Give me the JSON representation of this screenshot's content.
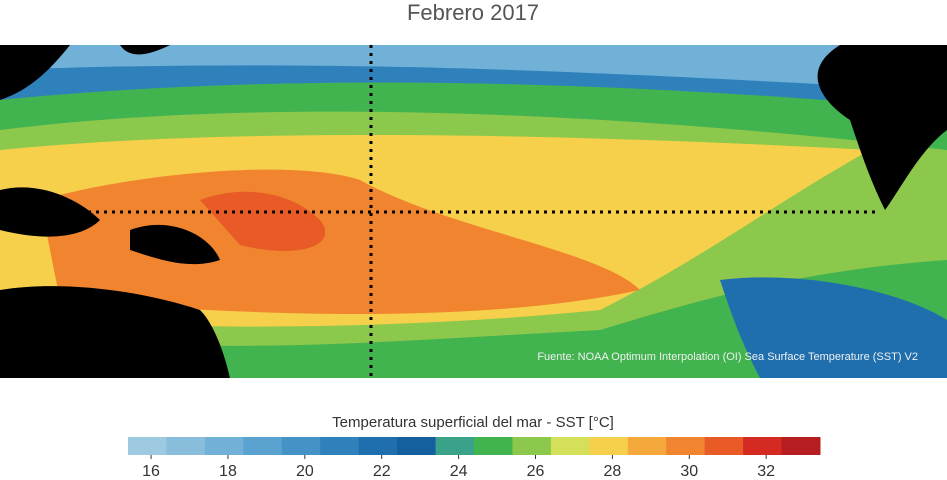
{
  "title": "Febrero 2017",
  "source": "Fuente: NOAA Optimum Interpolation (OI) Sea Surface Temperature (SST) V2",
  "colorbar": {
    "label": "Temperatura superficial del mar - SST  [°C]",
    "lim": [
      15.4,
      33.4
    ],
    "ticks": [
      16,
      18,
      20,
      22,
      24,
      26,
      28,
      30,
      32
    ],
    "colors": [
      "#9ecae1",
      "#88bedc",
      "#71b1d7",
      "#5aa2cf",
      "#4492c6",
      "#2f81bc",
      "#1f6fae",
      "#155f9e",
      "#3ba28a",
      "#41b34f",
      "#8cc84b",
      "#d5e05a",
      "#f6d04b",
      "#f5a93c",
      "#f1842f",
      "#e85a26",
      "#d52a22",
      "#b51d20"
    ]
  }
}
